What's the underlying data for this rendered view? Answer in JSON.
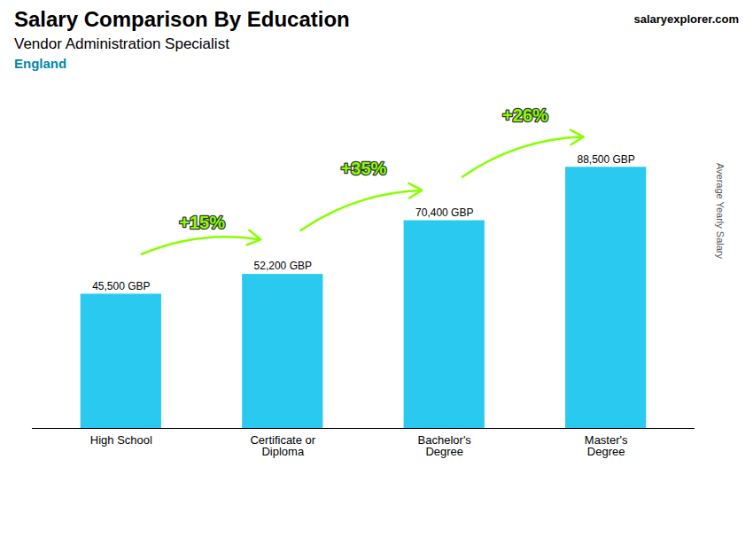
{
  "chart_data": {
    "type": "bar",
    "title": "Salary Comparison By Education",
    "subtitle": "Vendor Administration Specialist",
    "location": "England",
    "source": "salaryexplorer.com",
    "ylabel": "Average Yearly Salary",
    "categories": [
      "High School",
      "Certificate or\nDiploma",
      "Bachelor's\nDegree",
      "Master's\nDegree"
    ],
    "values": [
      45500,
      52200,
      70400,
      88500
    ],
    "value_labels": [
      "45,500 GBP",
      "52,200 GBP",
      "70,400 GBP",
      "88,500 GBP"
    ],
    "data_labels": true,
    "color": "#29c9f0",
    "ylim": [
      0,
      115000
    ],
    "tick_labels": "x",
    "grid": false,
    "annotations": [
      {
        "text": "+15%",
        "color": "#88ff00"
      },
      {
        "text": "+35%",
        "color": "#88ff00"
      },
      {
        "text": "+26%",
        "color": "#88ff00"
      }
    ]
  }
}
